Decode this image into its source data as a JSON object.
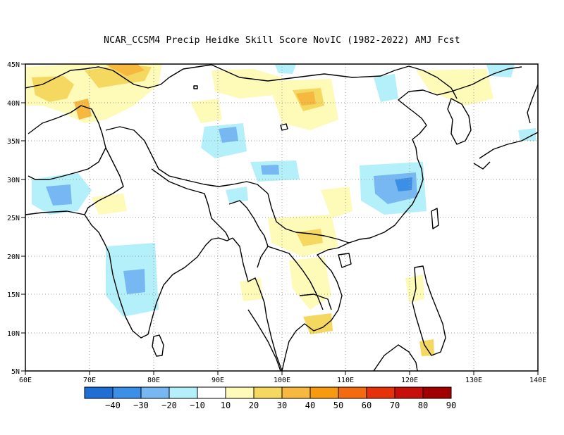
{
  "title": "NCAR_CCSM4 Precip Heidke Skill Score NovIC (1982-2022) AMJ Fcst",
  "lat_ticks": [
    "45N",
    "40N",
    "35N",
    "30N",
    "25N",
    "20N",
    "15N",
    "10N",
    "5N"
  ],
  "lon_ticks": [
    "60E",
    "70E",
    "80E",
    "90E",
    "100E",
    "110E",
    "120E",
    "130E",
    "140E"
  ],
  "colorbar": {
    "colors": [
      "#1f6ed4",
      "#3c8fe6",
      "#78b8f2",
      "#b4f0fa",
      "#ffffff",
      "#fefab8",
      "#f5d860",
      "#f7b840",
      "#f79a10",
      "#f46a0e",
      "#e6320a",
      "#c8100a",
      "#a00000"
    ],
    "labels": [
      "-40",
      "-30",
      "-20",
      "-10",
      "10",
      "20",
      "30",
      "40",
      "50",
      "60",
      "70",
      "80",
      "90"
    ]
  },
  "map": {
    "region": "South and East Asia",
    "lon_range": [
      60,
      140
    ],
    "lat_range": [
      5,
      45
    ],
    "grid": "dotted"
  }
}
